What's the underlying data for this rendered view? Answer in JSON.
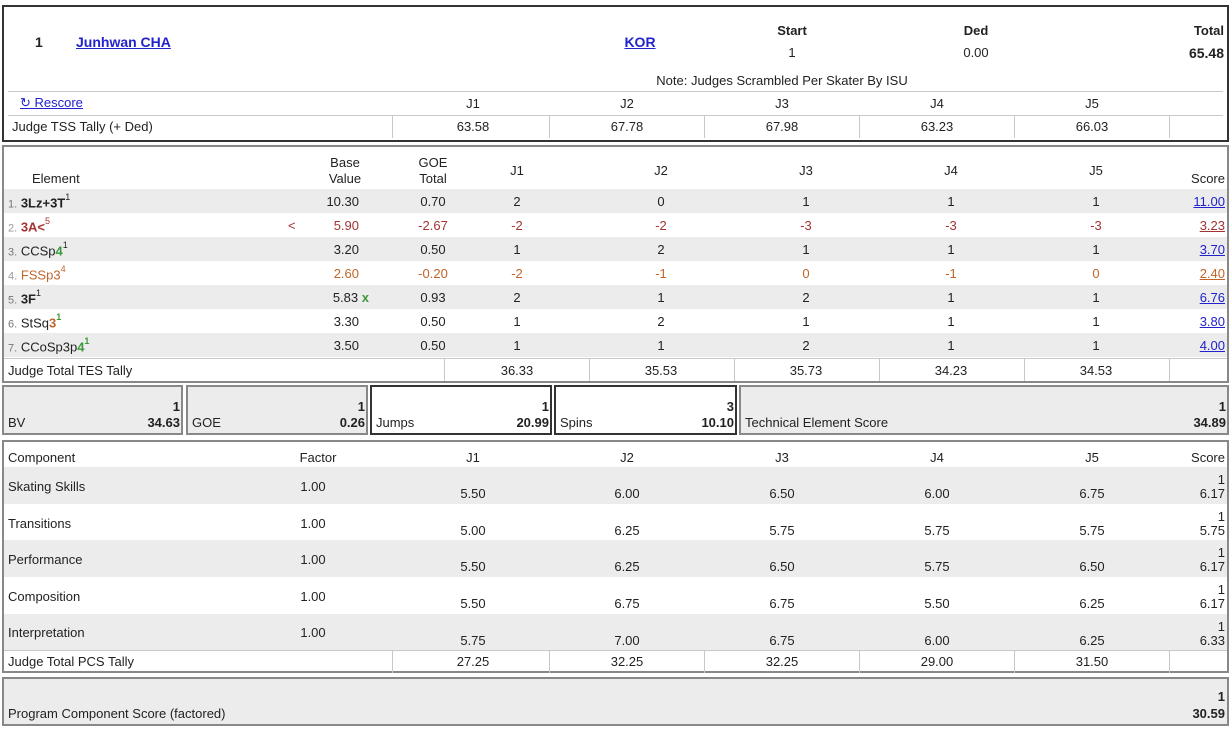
{
  "skater": {
    "rank": "1",
    "name": "Junhwan CHA",
    "nation": "KOR",
    "start_label": "Start",
    "start": "1",
    "ded_label": "Ded",
    "ded": "0.00",
    "total_label": "Total",
    "total": "65.48",
    "note": "Note: Judges Scrambled Per Skater By ISU"
  },
  "rescore": "↻ Rescore",
  "judges": [
    "J1",
    "J2",
    "J3",
    "J4",
    "J5"
  ],
  "tss_tally": {
    "label": "Judge TSS Tally (+ Ded)",
    "values": [
      "63.58",
      "67.78",
      "67.98",
      "63.23",
      "66.03"
    ]
  },
  "elements_header": {
    "element": "Element",
    "base_1": "Base",
    "base_2": "Value",
    "goe_1": "GOE",
    "goe_2": "Total",
    "score": "Score"
  },
  "elements": [
    {
      "num": "1.",
      "code": "3Lz+3T",
      "sup": "1",
      "mark": "",
      "bv": "10.30",
      "bvx": "",
      "goe": "0.70",
      "j": [
        "2",
        "0",
        "1",
        "1",
        "1"
      ],
      "score": "11.00",
      "style": "bold"
    },
    {
      "num": "2.",
      "code": "3A<",
      "sup": "5",
      "mark": "<",
      "bv": "5.90",
      "bvx": "",
      "goe": "-2.67",
      "j": [
        "-2",
        "-2",
        "-3",
        "-3",
        "-3"
      ],
      "score": "3.23",
      "style": "red"
    },
    {
      "num": "3.",
      "code": "CCSp",
      "lvl": "4",
      "sup": "1",
      "mark": "",
      "bv": "3.20",
      "bvx": "",
      "goe": "0.50",
      "j": [
        "1",
        "2",
        "1",
        "1",
        "1"
      ],
      "score": "3.70",
      "style": "normal"
    },
    {
      "num": "4.",
      "code": "FSSp",
      "lvl": "3",
      "sup": "4",
      "mark": "",
      "bv": "2.60",
      "bvx": "",
      "goe": "-0.20",
      "j": [
        "-2",
        "-1",
        "0",
        "-1",
        "0"
      ],
      "score": "2.40",
      "style": "orange"
    },
    {
      "num": "5.",
      "code": "3F",
      "sup": "1",
      "mark": "",
      "bv": "5.83",
      "bvx": "x",
      "goe": "0.93",
      "j": [
        "2",
        "1",
        "2",
        "1",
        "1"
      ],
      "score": "6.76",
      "style": "bold"
    },
    {
      "num": "6.",
      "code": "StSq",
      "lvl": "3",
      "sup": "1",
      "mark": "",
      "bv": "3.30",
      "bvx": "",
      "goe": "0.50",
      "j": [
        "1",
        "2",
        "1",
        "1",
        "1"
      ],
      "score": "3.80",
      "style": "normal"
    },
    {
      "num": "7.",
      "code": "CCoSp3p",
      "lvl": "4",
      "sup": "1",
      "mark": "",
      "bv": "3.50",
      "bvx": "",
      "goe": "0.50",
      "j": [
        "1",
        "1",
        "2",
        "1",
        "1"
      ],
      "score": "4.00",
      "style": "normal"
    }
  ],
  "tes_tally": {
    "label": "Judge Total TES Tally",
    "values": [
      "36.33",
      "35.53",
      "35.73",
      "34.23",
      "34.53"
    ]
  },
  "summary": {
    "bv": {
      "rank": "1",
      "label": "BV",
      "value": "34.63"
    },
    "goe": {
      "rank": "1",
      "label": "GOE",
      "value": "0.26"
    },
    "jumps": {
      "rank": "1",
      "label": "Jumps",
      "value": "20.99"
    },
    "spins": {
      "rank": "3",
      "label": "Spins",
      "value": "10.10"
    },
    "tes": {
      "rank": "1",
      "label": "Technical Element Score",
      "value": "34.89"
    }
  },
  "components_header": {
    "component": "Component",
    "factor": "Factor",
    "score": "Score"
  },
  "components": [
    {
      "name": "Skating Skills",
      "factor": "1.00",
      "j": [
        "5.50",
        "6.00",
        "6.50",
        "6.00",
        "6.75"
      ],
      "rank": "1",
      "score": "6.17"
    },
    {
      "name": "Transitions",
      "factor": "1.00",
      "j": [
        "5.00",
        "6.25",
        "5.75",
        "5.75",
        "5.75"
      ],
      "rank": "1",
      "score": "5.75"
    },
    {
      "name": "Performance",
      "factor": "1.00",
      "j": [
        "5.50",
        "6.25",
        "6.50",
        "5.75",
        "6.50"
      ],
      "rank": "1",
      "score": "6.17"
    },
    {
      "name": "Composition",
      "factor": "1.00",
      "j": [
        "5.50",
        "6.75",
        "6.75",
        "5.50",
        "6.25"
      ],
      "rank": "1",
      "score": "6.17"
    },
    {
      "name": "Interpretation",
      "factor": "1.00",
      "j": [
        "5.75",
        "7.00",
        "6.75",
        "6.00",
        "6.25"
      ],
      "rank": "1",
      "score": "6.33"
    }
  ],
  "pcs_tally": {
    "label": "Judge Total PCS Tally",
    "values": [
      "27.25",
      "32.25",
      "32.25",
      "29.00",
      "31.50"
    ]
  },
  "pcs": {
    "rank": "1",
    "label": "Program Component Score (factored)",
    "value": "30.59"
  },
  "colors": {
    "link": "#2222cc",
    "under_rotated": "#a33333",
    "level_orange": "#c0652a",
    "level_green": "#3a9a3a"
  }
}
